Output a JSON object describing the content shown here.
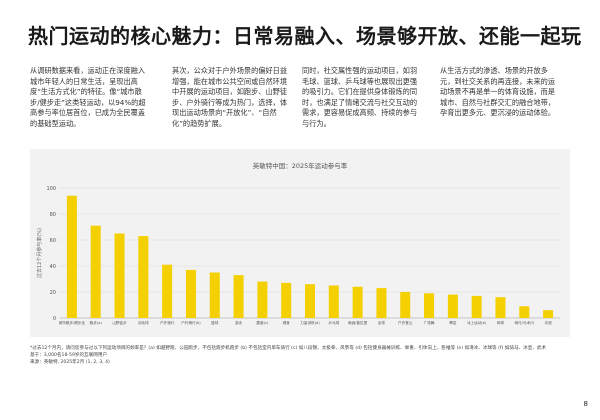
{
  "title": "热门运动的核心魅力：日常易融入、场景够开放、还能一起玩",
  "columns": [
    "从调研数据来看，运动正在深度融入城市年轻人的日常生活，呈现出高度“生活方式化”的特征。像“城市散步/健步走”这类轻运动，以94%的超高参与率位居首位，已成为全民覆盖的基础型运动。",
    "其次，公众对于户外场景的偏好日益增强，能在城市公共空间或自然环境中开展的运动项目，如跑步、山野徒步、户外骑行等成为热门，选择，体现出运动场景向“开放化”、“自然化”的趋势扩展。",
    "同时，社交属性强的运动项目，如羽毛球、篮球、乒乓球等也展现出更强的吸引力。它们在提供身体锻炼的同时，也满足了情绪交流与社交互动的需求，更容易促成高频、持续的参与与行为。",
    "从生活方式的渗透、场景的开放多元，到社交关系的再连接，未来的运动场景不再是单一的体育设施，而是城市、自然与社群交汇的融合地带，孕育出更多元、更沉浸的运动体验。"
  ],
  "chart_data": {
    "type": "bar",
    "title": "英敏特中国：2025年运动参与率",
    "ylabel": "过去12个月参与率(%)",
    "ylim": [
      0,
      100
    ],
    "yticks": [
      0,
      20,
      40,
      60,
      80,
      100
    ],
    "categories": [
      "城市散步/健步走",
      "跑步(a)",
      "山野徒步",
      "羽毛球",
      "户外骑行",
      "户外滑行(b)",
      "篮球",
      "游泳",
      "露营(c)",
      "健身",
      "力量训练(d)",
      "乒乓球",
      "瑜伽/普拉提",
      "足球",
      "户外登山",
      "广场舞",
      "攀岩",
      "冰上运动(e)",
      "网球",
      "骑马/马术(f)",
      "冲浪"
    ],
    "values": [
      94,
      71,
      65,
      63,
      41,
      37,
      35,
      33,
      28,
      27,
      26,
      25,
      24,
      23,
      20,
      19,
      18,
      17,
      16,
      9,
      6
    ],
    "color": "#f4d000"
  },
  "notes": [
    "*过去12个月内，请问您参与过以下列运动项目的频率是？(a) 如越野跑、公园跑步，不包括跑步机跑步 (b) 不包括室内单车骑行 (c) 如八段锦、太极拳、风筝等 (d) 包括健身器械训练、举重、引体向上、卧推等 (e) 如滑冰、冰球等 (f) 如骑马、冰壶、武术",
    "基于：3,000名18-59岁的互联网用户",
    "来源：英敏特, 2025年2月 (1, 2, 3, 4)"
  ],
  "page_number": "8"
}
